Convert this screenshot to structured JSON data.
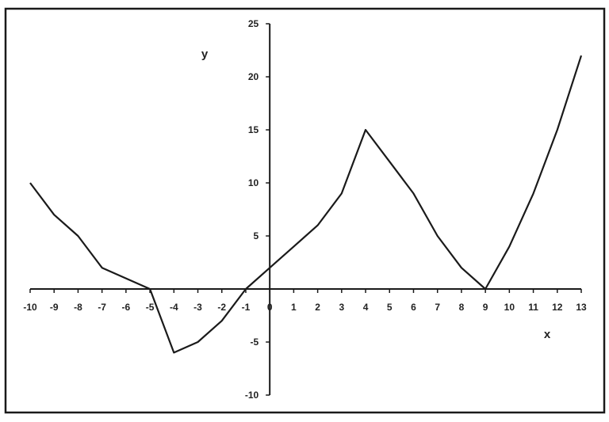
{
  "chart_data": {
    "type": "line",
    "title": "",
    "xlabel": "x",
    "ylabel": "y",
    "xlim": [
      -10,
      13
    ],
    "ylim": [
      -10,
      25
    ],
    "xticks": [
      -10,
      -9,
      -8,
      -7,
      -6,
      -5,
      -4,
      -3,
      -2,
      -1,
      0,
      1,
      2,
      3,
      4,
      5,
      6,
      7,
      8,
      9,
      10,
      11,
      12,
      13
    ],
    "yticks": [
      -10,
      -5,
      0,
      5,
      10,
      15,
      20,
      25
    ],
    "grid": false,
    "x": [
      -10,
      -9,
      -8,
      -7,
      -6,
      -5,
      -4,
      -3,
      -2,
      -1,
      0,
      1,
      2,
      3,
      4,
      5,
      6,
      7,
      8,
      9,
      10,
      11,
      12,
      13
    ],
    "series": [
      {
        "values": [
          10,
          7,
          5,
          2,
          1,
          0,
          -6,
          -5,
          -3,
          0,
          2,
          4,
          6,
          9,
          15,
          12,
          9,
          5,
          2,
          0,
          4,
          9,
          15,
          22
        ],
        "color": "#1a1a1a"
      }
    ]
  }
}
